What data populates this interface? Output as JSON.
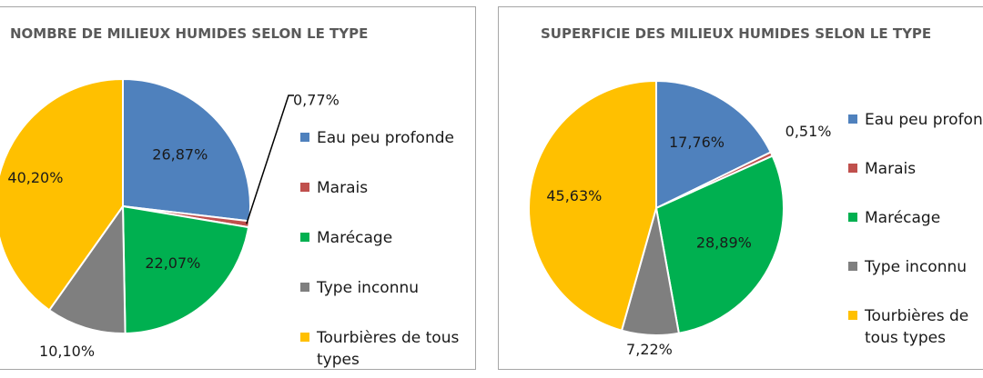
{
  "chart_data": [
    {
      "type": "pie",
      "title": "NOMBRE DE MILIEUX HUMIDES SELON LE TYPE",
      "categories": [
        "Eau peu profonde",
        "Marais",
        "Marécage",
        "Type inconnu",
        "Tourbières de tous types"
      ],
      "values": [
        26.87,
        0.77,
        22.07,
        10.1,
        40.2
      ],
      "data_labels": [
        "26,87%",
        "0,77%",
        "22,07%",
        "10,10%",
        "40,20%"
      ],
      "legend": "right",
      "colors": [
        "#4f81bd",
        "#c0504d",
        "#00b050",
        "#7f7f7f",
        "#ffc000"
      ]
    },
    {
      "type": "pie",
      "title": "SUPERFICIE DES MILIEUX HUMIDES SELON LE TYPE",
      "categories": [
        "Eau peu profonde",
        "Marais",
        "Marécage",
        "Type inconnu",
        "Tourbières de tous types"
      ],
      "values": [
        17.76,
        0.51,
        28.89,
        7.22,
        45.63
      ],
      "data_labels": [
        "17,76%",
        "0,51%",
        "28,89%",
        "7,22%",
        "45,63%"
      ],
      "legend": "right",
      "colors": [
        "#4f81bd",
        "#c0504d",
        "#00b050",
        "#7f7f7f",
        "#ffc000"
      ]
    }
  ]
}
